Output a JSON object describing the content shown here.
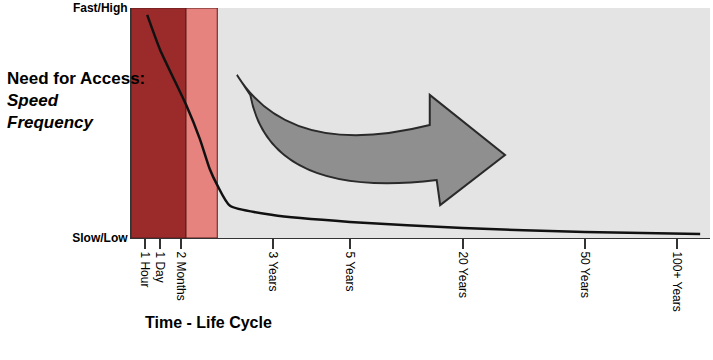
{
  "chart_data": {
    "type": "line",
    "y_label": [
      "Need for Access:",
      "Speed",
      "Frequency"
    ],
    "x_label": "Time - Life Cycle",
    "x": [
      2.8,
      5.0,
      9.5,
      11.9,
      13.6,
      14.9,
      17.1,
      24.5,
      37.8,
      57.3,
      78.4,
      98.3
    ],
    "values": [
      97,
      82,
      58,
      43,
      30,
      23,
      14,
      10,
      7,
      4.3,
      2.6,
      1.7
    ],
    "color": "#111111",
    "xlim": [
      0,
      100
    ],
    "ylim": [
      0,
      100
    ],
    "xticks": [
      {
        "value": 2.4,
        "label": "1 Hour"
      },
      {
        "value": 5.0,
        "label": "1 Day"
      },
      {
        "value": 8.6,
        "label": "2 Months"
      },
      {
        "value": 24.5,
        "label": "3 Years"
      },
      {
        "value": 37.8,
        "label": "5 Years"
      },
      {
        "value": 57.3,
        "label": "20 Years"
      },
      {
        "value": 78.4,
        "label": "50 Years"
      },
      {
        "value": 94.3,
        "label": "100+ Years"
      }
    ],
    "yticks": [
      {
        "value": 0,
        "label": "Slow/Low"
      },
      {
        "value": 100,
        "label": "Fast/High"
      }
    ],
    "grid": false,
    "bands": [
      {
        "from": 0,
        "to": 9.5,
        "color": "#9b2b2b"
      },
      {
        "from": 9.5,
        "to": 14.9,
        "color": "#e6837f"
      }
    ]
  }
}
